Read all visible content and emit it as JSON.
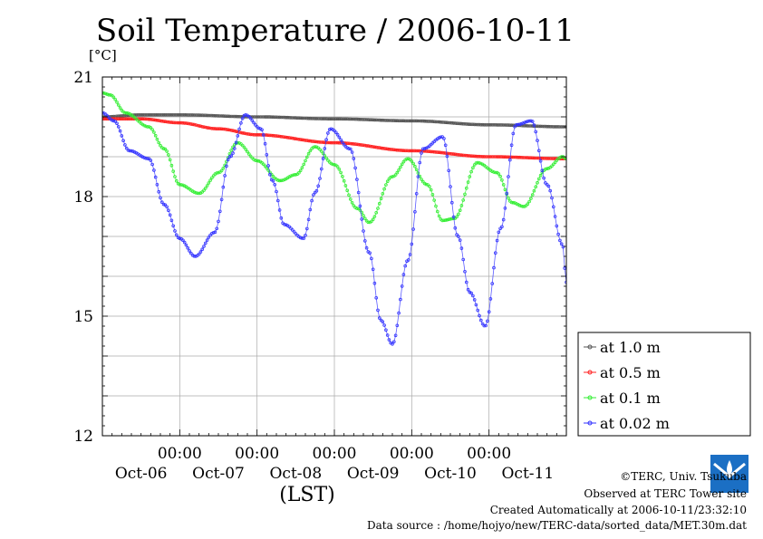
{
  "title": "Soil Temperature / 2006-10-11",
  "ylabel_unit": "[°C]",
  "xlabel": "(LST)",
  "credits": {
    "copyright": "©TERC, Univ. Tsukuba",
    "observed": "Observed at TERC Tower site",
    "created": "Created Automatically at 2006-10-11/23:32:10",
    "source": "Data source : /home/hojyo/new/TERC-data/sorted_data/MET.30m.dat"
  },
  "logo_text": "TERC",
  "chart_data": {
    "type": "line",
    "xlabel": "(LST)",
    "ylabel": "[°C]",
    "xlim": [
      0,
      6
    ],
    "ylim": [
      12,
      21
    ],
    "yticks": [
      12,
      15,
      18,
      21
    ],
    "x_tick_labels": [
      {
        "x": 1,
        "time": "00:00",
        "date": "Oct-07"
      },
      {
        "x": 2,
        "time": "00:00",
        "date": "Oct-08"
      },
      {
        "x": 3,
        "time": "00:00",
        "date": "Oct-09"
      },
      {
        "x": 4,
        "time": "00:00",
        "date": "Oct-10"
      },
      {
        "x": 5,
        "time": "00:00",
        "date": "Oct-11"
      }
    ],
    "date_labels": [
      "Oct-06",
      "Oct-07",
      "Oct-08",
      "Oct-09",
      "Oct-10",
      "Oct-11"
    ],
    "grid": true,
    "legend_position": "right-bottom",
    "series": [
      {
        "name": "at 1.0 m",
        "color": "#555555",
        "points": [
          [
            0,
            20.0
          ],
          [
            0.5,
            20.05
          ],
          [
            1,
            20.05
          ],
          [
            2,
            20.0
          ],
          [
            3,
            19.95
          ],
          [
            4,
            19.9
          ],
          [
            5,
            19.8
          ],
          [
            6,
            19.75
          ]
        ]
      },
      {
        "name": "at 0.5 m",
        "color": "#ff2020",
        "points": [
          [
            0,
            19.95
          ],
          [
            0.5,
            19.95
          ],
          [
            1,
            19.85
          ],
          [
            1.5,
            19.7
          ],
          [
            2,
            19.55
          ],
          [
            3,
            19.35
          ],
          [
            4,
            19.15
          ],
          [
            5,
            19.0
          ],
          [
            6,
            18.95
          ]
        ]
      },
      {
        "name": "at 0.1 m",
        "color": "#33ee33",
        "points": [
          [
            0,
            20.6
          ],
          [
            0.1,
            20.55
          ],
          [
            0.3,
            20.1
          ],
          [
            0.6,
            19.75
          ],
          [
            0.8,
            19.2
          ],
          [
            1.0,
            18.3
          ],
          [
            1.25,
            18.08
          ],
          [
            1.5,
            18.6
          ],
          [
            1.75,
            19.35
          ],
          [
            2.0,
            18.9
          ],
          [
            2.3,
            18.4
          ],
          [
            2.5,
            18.55
          ],
          [
            2.75,
            19.25
          ],
          [
            3.0,
            18.8
          ],
          [
            3.3,
            17.7
          ],
          [
            3.45,
            17.35
          ],
          [
            3.75,
            18.5
          ],
          [
            3.95,
            18.95
          ],
          [
            4.2,
            18.3
          ],
          [
            4.4,
            17.4
          ],
          [
            4.55,
            17.45
          ],
          [
            4.85,
            18.85
          ],
          [
            5.1,
            18.6
          ],
          [
            5.3,
            17.85
          ],
          [
            5.45,
            17.75
          ],
          [
            5.75,
            18.7
          ],
          [
            5.95,
            19.0
          ],
          [
            6,
            18.95
          ]
        ]
      },
      {
        "name": "at 0.02 m",
        "color": "#3333ff",
        "points": [
          [
            0,
            20.1
          ],
          [
            0.15,
            19.9
          ],
          [
            0.35,
            19.15
          ],
          [
            0.6,
            18.95
          ],
          [
            0.8,
            17.8
          ],
          [
            1.0,
            16.95
          ],
          [
            1.2,
            16.5
          ],
          [
            1.45,
            17.1
          ],
          [
            1.65,
            19.0
          ],
          [
            1.85,
            20.05
          ],
          [
            2.05,
            19.7
          ],
          [
            2.2,
            18.4
          ],
          [
            2.35,
            17.3
          ],
          [
            2.6,
            16.95
          ],
          [
            2.75,
            18.1
          ],
          [
            2.95,
            19.7
          ],
          [
            3.2,
            19.2
          ],
          [
            3.45,
            16.6
          ],
          [
            3.6,
            14.9
          ],
          [
            3.75,
            14.3
          ],
          [
            3.95,
            16.4
          ],
          [
            4.15,
            19.2
          ],
          [
            4.4,
            19.5
          ],
          [
            4.6,
            17.0
          ],
          [
            4.75,
            15.6
          ],
          [
            4.95,
            14.75
          ],
          [
            5.15,
            17.2
          ],
          [
            5.35,
            19.8
          ],
          [
            5.55,
            19.9
          ],
          [
            5.75,
            18.3
          ],
          [
            5.95,
            16.8
          ],
          [
            6.0,
            15.85
          ]
        ]
      }
    ]
  }
}
